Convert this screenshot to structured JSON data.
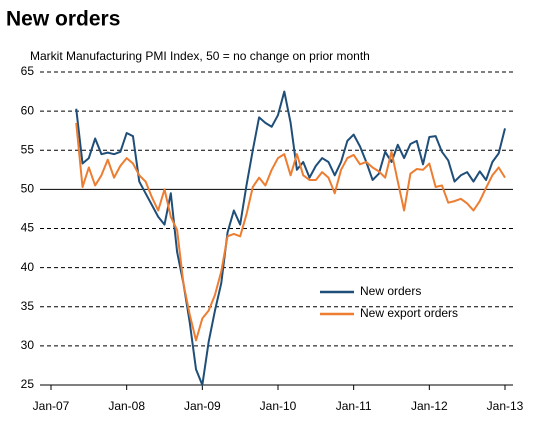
{
  "chart_data": {
    "type": "line",
    "title": "New orders",
    "subtitle": "Markit Manufacturing PMI Index, 50 = no change on prior month",
    "categories": [
      "Jan-07",
      null,
      null,
      null,
      null,
      null,
      null,
      null,
      null,
      null,
      null,
      null,
      "Jan-08",
      null,
      null,
      null,
      null,
      null,
      null,
      null,
      null,
      null,
      null,
      null,
      "Jan-09",
      null,
      null,
      null,
      null,
      null,
      null,
      null,
      null,
      null,
      null,
      null,
      "Jan-10",
      null,
      null,
      null,
      null,
      null,
      null,
      null,
      null,
      null,
      null,
      null,
      "Jan-11",
      null,
      null,
      null,
      null,
      null,
      null,
      null,
      null,
      null,
      null,
      null,
      "Jan-12",
      null,
      null,
      null,
      null,
      null,
      null,
      null,
      null,
      null,
      null,
      null,
      "Jan-13"
    ],
    "series": [
      {
        "name": "New orders",
        "color": "#1f4e79",
        "values": [
          null,
          null,
          null,
          null,
          60.3,
          53.3,
          54,
          56.5,
          54.5,
          54.7,
          54.5,
          54.8,
          57.2,
          56.8,
          51,
          49.5,
          48,
          46.5,
          45.5,
          49.5,
          42,
          38,
          33,
          27,
          25,
          30.5,
          34.5,
          38,
          44.5,
          47.3,
          45.5,
          50.5,
          55,
          59.2,
          58.5,
          58,
          59.5,
          62.5,
          58.5,
          52.5,
          53.5,
          51.5,
          53,
          54,
          53.5,
          51.8,
          53.5,
          56.2,
          57,
          55.5,
          53.5,
          51.2,
          52,
          54.8,
          53.5,
          55.7,
          54,
          55.8,
          56.2,
          53.2,
          56.7,
          56.8,
          54.8,
          53.7,
          51,
          51.8,
          52.2,
          51,
          52.3,
          51.2,
          53.5,
          54.6,
          57.8
        ]
      },
      {
        "name": "New export orders",
        "color": "#ed7d31",
        "values": [
          null,
          null,
          null,
          null,
          58.5,
          50.3,
          52.8,
          50.5,
          51.8,
          53.8,
          51.5,
          53,
          54,
          53.3,
          51.8,
          51,
          49,
          47.3,
          50,
          46.5,
          44.8,
          38,
          34,
          30.7,
          33.5,
          34.5,
          36.5,
          39.5,
          44,
          44.3,
          44,
          46.8,
          50.3,
          51.5,
          50.5,
          52.5,
          54,
          54.5,
          51.8,
          54.5,
          51.8,
          51.2,
          51.2,
          52.2,
          51.5,
          49.5,
          52.5,
          54,
          54.4,
          53.2,
          53.5,
          52.8,
          52.3,
          51.5,
          54.8,
          51,
          47.3,
          52,
          52.6,
          52.5,
          53.3,
          50.3,
          50.5,
          48.3,
          48.5,
          48.8,
          48.2,
          47.3,
          48.5,
          50.2,
          51.8,
          52.8,
          51.5
        ]
      }
    ],
    "ylim": [
      25,
      65
    ],
    "yticks": [
      25,
      30,
      35,
      40,
      45,
      50,
      55,
      60,
      65
    ],
    "grid": true,
    "baseline": 50,
    "legend": "lower right"
  }
}
